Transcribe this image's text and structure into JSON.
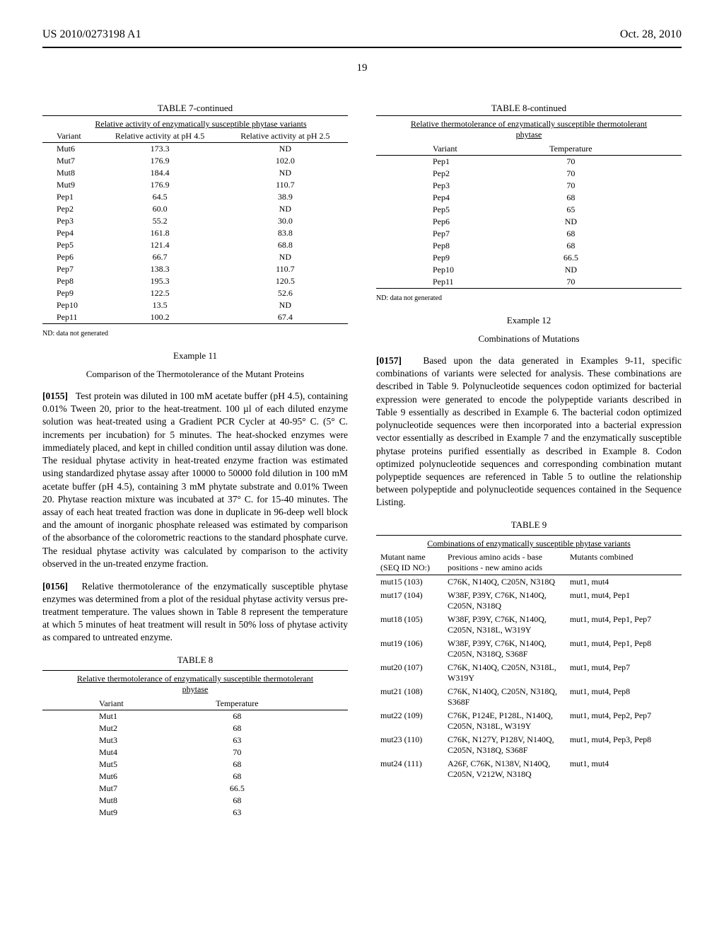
{
  "header": {
    "left": "US 2010/0273198 A1",
    "right": "Oct. 28, 2010"
  },
  "page_number": "19",
  "table7": {
    "title": "TABLE 7-continued",
    "subtitle": "Relative activity of enzymatically susceptible phytase variants",
    "columns": [
      "Variant",
      "Relative activity at pH 4.5",
      "Relative activity at pH 2.5"
    ],
    "rows": [
      [
        "Mut6",
        "173.3",
        "ND"
      ],
      [
        "Mut7",
        "176.9",
        "102.0"
      ],
      [
        "Mut8",
        "184.4",
        "ND"
      ],
      [
        "Mut9",
        "176.9",
        "110.7"
      ],
      [
        "Pep1",
        "64.5",
        "38.9"
      ],
      [
        "Pep2",
        "60.0",
        "ND"
      ],
      [
        "Pep3",
        "55.2",
        "30.0"
      ],
      [
        "Pep4",
        "161.8",
        "83.8"
      ],
      [
        "Pep5",
        "121.4",
        "68.8"
      ],
      [
        "Pep6",
        "66.7",
        "ND"
      ],
      [
        "Pep7",
        "138.3",
        "110.7"
      ],
      [
        "Pep8",
        "195.3",
        "120.5"
      ],
      [
        "Pep9",
        "122.5",
        "52.6"
      ],
      [
        "Pep10",
        "13.5",
        "ND"
      ],
      [
        "Pep11",
        "100.2",
        "67.4"
      ]
    ],
    "footnote": "ND: data not generated"
  },
  "example11": {
    "num": "Example 11",
    "title": "Comparison of the Thermotolerance of the Mutant Proteins",
    "p155_num": "[0155]",
    "p155": "Test protein was diluted in 100 mM acetate buffer (pH 4.5), containing 0.01% Tween 20, prior to the heat-treatment. 100 µl of each diluted enzyme solution was heat-treated using a Gradient PCR Cycler at 40-95° C. (5° C. increments per incubation) for 5 minutes. The heat-shocked enzymes were immediately placed, and kept in chilled condition until assay dilution was done. The residual phytase activity in heat-treated enzyme fraction was estimated using standardized phytase assay after 10000 to 50000 fold dilution in 100 mM acetate buffer (pH 4.5), containing 3 mM phytate substrate and 0.01% Tween 20. Phytase reaction mixture was incubated at 37° C. for 15-40 minutes. The assay of each heat treated fraction was done in duplicate in 96-deep well block and the amount of inorganic phosphate released was estimated by comparison of the absorbance of the colorometric reactions to the standard phosphate curve. The residual phytase activity was calculated by comparison to the activity observed in the un-treated enzyme fraction.",
    "p156_num": "[0156]",
    "p156": "Relative thermotolerance of the enzymatically susceptible phytase enzymes was determined from a plot of the residual phytase activity versus pre-treatment temperature. The values shown in Table 8 represent the temperature at which 5 minutes of heat treatment will result in 50% loss of phytase activity as compared to untreated enzyme."
  },
  "table8": {
    "title": "TABLE 8",
    "subtitle": "Relative thermotolerance of enzymatically susceptible thermotolerant phytase",
    "columns": [
      "Variant",
      "Temperature"
    ],
    "rows_left": [
      [
        "Mut1",
        "68"
      ],
      [
        "Mut2",
        "68"
      ],
      [
        "Mut3",
        "63"
      ],
      [
        "Mut4",
        "70"
      ],
      [
        "Mut5",
        "68"
      ],
      [
        "Mut6",
        "68"
      ],
      [
        "Mut7",
        "66.5"
      ],
      [
        "Mut8",
        "68"
      ],
      [
        "Mut9",
        "63"
      ]
    ]
  },
  "table8c": {
    "title": "TABLE 8-continued",
    "subtitle": "Relative thermotolerance of enzymatically susceptible thermotolerant phytase",
    "columns": [
      "Variant",
      "Temperature"
    ],
    "rows": [
      [
        "Pep1",
        "70"
      ],
      [
        "Pep2",
        "70"
      ],
      [
        "Pep3",
        "70"
      ],
      [
        "Pep4",
        "68"
      ],
      [
        "Pep5",
        "65"
      ],
      [
        "Pep6",
        "ND"
      ],
      [
        "Pep7",
        "68"
      ],
      [
        "Pep8",
        "68"
      ],
      [
        "Pep9",
        "66.5"
      ],
      [
        "Pep10",
        "ND"
      ],
      [
        "Pep11",
        "70"
      ]
    ],
    "footnote": "ND: data not generated"
  },
  "example12": {
    "num": "Example 12",
    "title": "Combinations of Mutations",
    "p157_num": "[0157]",
    "p157": "Based upon the data generated in Examples 9-11, specific combinations of variants were selected for analysis. These combinations are described in Table 9. Polynucleotide sequences codon optimized for bacterial expression were generated to encode the polypeptide variants described in Table 9 essentially as described in Example 6. The bacterial codon optimized polynucleotide sequences were then incorporated into a bacterial expression vector essentially as described in Example 7 and the enzymatically susceptible phytase proteins purified essentially as described in Example 8. Codon optimized polynucleotide sequences and corresponding combination mutant polypeptide sequences are referenced in Table 5 to outline the relationship between polypeptide and polynucleotide sequences contained in the Sequence Listing."
  },
  "table9": {
    "title": "TABLE 9",
    "subtitle": "Combinations of enzymatically susceptible phytase variants",
    "columns": [
      "Mutant name (SEQ ID NO:)",
      "Previous amino acids - base positions - new amino acids",
      "Mutants combined"
    ],
    "rows": [
      [
        "mut15 (103)",
        "C76K, N140Q, C205N, N318Q",
        "mut1, mut4"
      ],
      [
        "mut17 (104)",
        "W38F, P39Y, C76K, N140Q, C205N, N318Q",
        "mut1, mut4, Pep1"
      ],
      [
        "mut18 (105)",
        "W38F, P39Y, C76K, N140Q, C205N, N318L, W319Y",
        "mut1, mut4, Pep1, Pep7"
      ],
      [
        "mut19 (106)",
        "W38F, P39Y, C76K, N140Q, C205N, N318Q, S368F",
        "mut1, mut4, Pep1, Pep8"
      ],
      [
        "mut20 (107)",
        "C76K, N140Q, C205N, N318L, W319Y",
        "mut1, mut4, Pep7"
      ],
      [
        "mut21 (108)",
        "C76K, N140Q, C205N, N318Q, S368F",
        "mut1, mut4, Pep8"
      ],
      [
        "mut22 (109)",
        "C76K, P124E, P128L, N140Q, C205N, N318L, W319Y",
        "mut1, mut4, Pep2, Pep7"
      ],
      [
        "mut23 (110)",
        "C76K, N127Y, P128V, N140Q, C205N, N318Q, S368F",
        "mut1, mut4, Pep3, Pep8"
      ],
      [
        "mut24 (111)",
        "A26F, C76K, N138V, N140Q, C205N, V212W, N318Q",
        "mut1, mut4"
      ]
    ]
  }
}
